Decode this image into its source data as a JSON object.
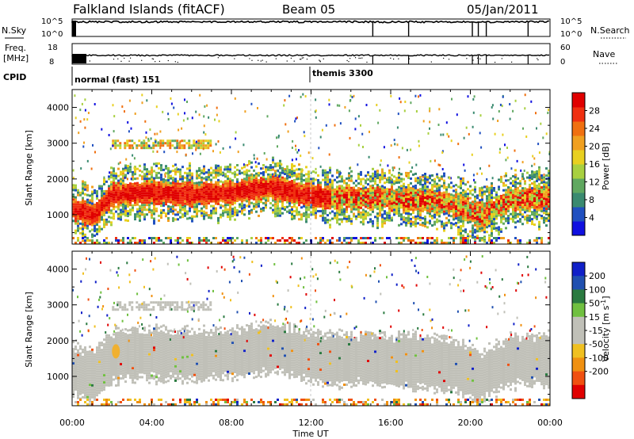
{
  "header": {
    "station": "Falkland Islands (fitACF)",
    "beam": "Beam 05",
    "date": "05/Jan/2011"
  },
  "strips": {
    "nsky_label": "N.Sky",
    "nsearch_label": "N.Search",
    "freq_label_line1": "Freq.",
    "freq_label_line2": "[MHz]",
    "nave_label": "Nave",
    "cpid_label": "CPID",
    "nsky_ticks": [
      "10^5",
      "10^0"
    ],
    "nsearch_ticks": [
      "10^5",
      "10^0"
    ],
    "freq_ticks": [
      "18",
      "8"
    ],
    "nave_ticks": [
      "60",
      "0"
    ],
    "cpid_modes": [
      {
        "label": "normal (fast) 151",
        "start_hour": 0
      },
      {
        "label": "themis 3300",
        "start_hour": 12
      }
    ]
  },
  "legend_colors": {
    "power": [
      "#1010e0",
      "#2050c0",
      "#3a8a70",
      "#60a860",
      "#a8d040",
      "#e8d020",
      "#f0a020",
      "#f07010",
      "#f03010",
      "#e00000"
    ],
    "velocity": [
      "#1020c8",
      "#2050b0",
      "#2a7a40",
      "#70c040",
      "#c0c0b8",
      "#c0c0b8",
      "#f0c020",
      "#f09010",
      "#f05010",
      "#e00000"
    ]
  },
  "chart_data": [
    {
      "type": "heatmap",
      "name": "power-panel",
      "ylabel": "Slant Range [km]",
      "x_range": [
        0,
        24
      ],
      "y_range": [
        180,
        4500
      ],
      "yticks": [
        1000,
        2000,
        3000,
        4000
      ],
      "colorbar_label": "Power [dB]",
      "colorbar_range": [
        0,
        32
      ],
      "colorbar_ticks": [
        4,
        8,
        12,
        16,
        20,
        24,
        28
      ],
      "echo_band_center_km": [
        [
          0.0,
          1200
        ],
        [
          1.0,
          1000
        ],
        [
          2.0,
          1600
        ],
        [
          4.0,
          1650
        ],
        [
          6.0,
          1600
        ],
        [
          8.0,
          1650
        ],
        [
          10.0,
          1800
        ],
        [
          11.5,
          1600
        ],
        [
          13.0,
          1500
        ],
        [
          15.0,
          1500
        ],
        [
          17.0,
          1450
        ],
        [
          19.0,
          1350
        ],
        [
          20.5,
          1000
        ],
        [
          22.0,
          1450
        ],
        [
          24.0,
          1500
        ]
      ],
      "upper_layer_km": [
        [
          1.8,
          2950
        ],
        [
          6.5,
          2950
        ]
      ]
    },
    {
      "type": "heatmap",
      "name": "velocity-panel",
      "ylabel": "Slant Range [km]",
      "xlabel": "Time UT",
      "x_range": [
        0,
        24
      ],
      "y_range": [
        180,
        4500
      ],
      "yticks": [
        1000,
        2000,
        3000,
        4000
      ],
      "xticks": [
        "00:00",
        "04:00",
        "08:00",
        "12:00",
        "16:00",
        "20:00",
        "00:00"
      ],
      "colorbar_label": "Velocity [m s-1]",
      "colorbar_ticks": [
        "200",
        "100",
        "50",
        "15",
        "-15",
        "-50",
        "-100",
        "-200"
      ]
    }
  ]
}
